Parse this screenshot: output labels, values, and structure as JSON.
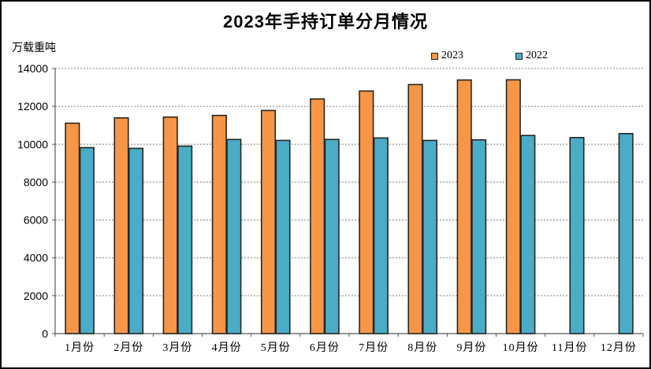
{
  "chart": {
    "title": "2023年手持订单分月情况",
    "unit_label": "万载重吨"
  },
  "chart_data": {
    "type": "bar",
    "title": "2023年手持订单分月情况",
    "ylabel": "万载重吨",
    "xlabel": "",
    "categories": [
      "1月份",
      "2月份",
      "3月份",
      "4月份",
      "5月份",
      "6月份",
      "7月份",
      "8月份",
      "9月份",
      "10月份",
      "11月份",
      "12月份"
    ],
    "series": [
      {
        "name": "2023",
        "color": "#F79646",
        "values": [
          11110,
          11390,
          11430,
          11520,
          11780,
          12390,
          12810,
          13150,
          13390,
          13400,
          null,
          null
        ]
      },
      {
        "name": "2022",
        "color": "#4BACC6",
        "values": [
          9820,
          9780,
          9900,
          10250,
          10200,
          10250,
          10330,
          10200,
          10230,
          10460,
          10350,
          10560
        ]
      }
    ],
    "ylim": [
      0,
      14000
    ],
    "yticks": [
      0,
      2000,
      4000,
      6000,
      8000,
      10000,
      12000,
      14000
    ],
    "grid": "horizontal-dashed",
    "legend_position": "top-right",
    "bar_border_color": "#262626",
    "gridline_color": "#808080",
    "axis_color": "#595959",
    "text_color": "#000000"
  }
}
